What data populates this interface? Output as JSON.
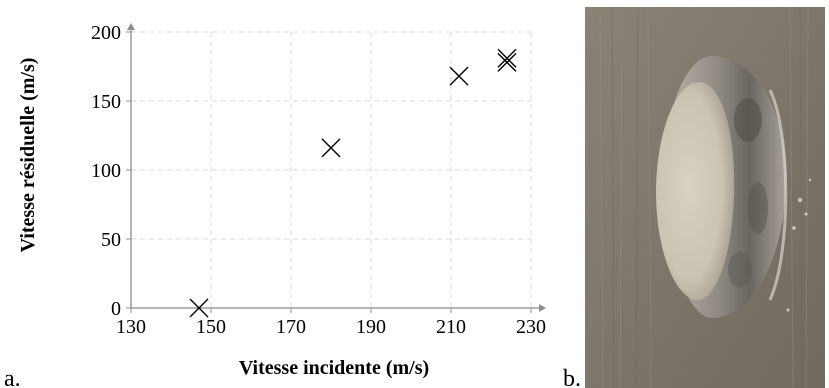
{
  "panels": {
    "a": "a.",
    "b": "b."
  },
  "chart_data": {
    "type": "scatter",
    "xlabel": "Vitesse incidente (m/s)",
    "ylabel": "Vitesse résiduelle (m/s)",
    "xlim": [
      130,
      230
    ],
    "ylim": [
      0,
      200
    ],
    "xticks": [
      130,
      150,
      170,
      190,
      210,
      230
    ],
    "yticks": [
      0,
      50,
      100,
      150,
      200
    ],
    "grid": true,
    "marker": "x",
    "colors": {
      "marker": "#000000",
      "grid": "#d9d9d9",
      "axis": "#8c8c8c"
    },
    "points": [
      {
        "x": 147,
        "y": 0
      },
      {
        "x": 180,
        "y": 116
      },
      {
        "x": 212,
        "y": 168
      },
      {
        "x": 224,
        "y": 181
      },
      {
        "x": 224,
        "y": 178
      }
    ]
  },
  "photo": {
    "description_icon": "plate-perforation-photo"
  }
}
